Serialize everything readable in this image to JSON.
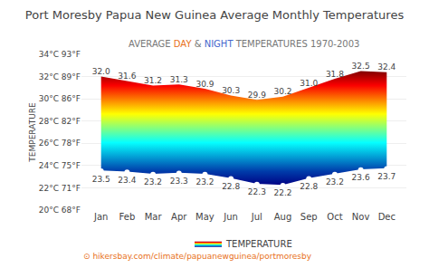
{
  "chart_data": {
    "type": "range_area",
    "title": "Port Moresby Papua New Guinea Average Monthly Temperatures",
    "subtitle": [
      {
        "text": "AVERAGE ",
        "color": "#777777"
      },
      {
        "text": "DAY",
        "color": "#e87020"
      },
      {
        "text": " & ",
        "color": "#777777"
      },
      {
        "text": "NIGHT",
        "color": "#4466cc"
      },
      {
        "text": " TEMPERATURES 1970-2003",
        "color": "#777777"
      }
    ],
    "categories": [
      "Jan",
      "Feb",
      "Mar",
      "Apr",
      "May",
      "Jun",
      "Jul",
      "Aug",
      "Sep",
      "Oct",
      "Nov",
      "Dec"
    ],
    "series": [
      {
        "name": "TEMPERATURE",
        "values": [
          32.0,
          31.6,
          31.2,
          31.3,
          30.9,
          30.3,
          29.9,
          30.2,
          31.0,
          31.8,
          32.5,
          32.4
        ],
        "value_labels": [
          "32.0",
          "31.6",
          "31.2",
          "31.3",
          "30.9",
          "30.3",
          "29.9",
          "30.2",
          "31.0",
          "31.8",
          "32.5",
          "32.4"
        ]
      },
      {
        "values": [
          23.5,
          23.4,
          23.2,
          23.3,
          23.2,
          22.8,
          22.3,
          22.2,
          22.8,
          23.2,
          23.6,
          23.7
        ],
        "value_labels": [
          "23.5",
          "23.4",
          "23.2",
          "23.3",
          "23.2",
          "22.8",
          "22.3",
          "22.2",
          "22.8",
          "23.2",
          "23.6",
          "23.7"
        ],
        "color": "#ffffff",
        "marker": "circle"
      }
    ],
    "ylabel": "TEMPERATURE",
    "ylim": [
      20,
      34
    ],
    "yticks": [
      {
        "value": 20,
        "label": "20°C 68°F"
      },
      {
        "value": 22,
        "label": "22°C 71°F"
      },
      {
        "value": 24,
        "label": "24°C 75°F"
      },
      {
        "value": 26,
        "label": "26°C 78°F"
      },
      {
        "value": 28,
        "label": "28°C 82°F"
      },
      {
        "value": 30,
        "label": "30°C 86°F"
      },
      {
        "value": 32,
        "label": "32°C 89°F"
      },
      {
        "value": 34,
        "label": "34°C 93°F"
      }
    ],
    "grid": true,
    "data_labels": true,
    "legend": "bottom",
    "annotations": [
      "⊙ hikersbay.com/climate/papuanewguinea/portmoresby"
    ]
  }
}
